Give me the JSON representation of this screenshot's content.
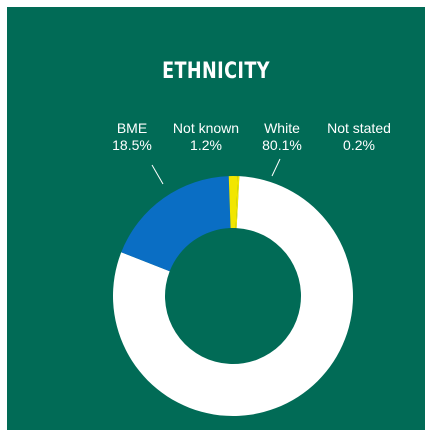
{
  "chart_data": {
    "type": "pie",
    "title": "ETHNICITY",
    "donut": true,
    "slices": [
      {
        "label": "White",
        "value": 80.1,
        "value_label": "80.1%",
        "color": "#ffffff"
      },
      {
        "label": "BME",
        "value": 18.5,
        "value_label": "18.5%",
        "color": "#0a6ec4"
      },
      {
        "label": "Not known",
        "value": 1.2,
        "value_label": "1.2%",
        "color": "#f2e600"
      },
      {
        "label": "Not stated",
        "value": 0.2,
        "value_label": "0.2%",
        "color": "#f2e600"
      }
    ]
  }
}
